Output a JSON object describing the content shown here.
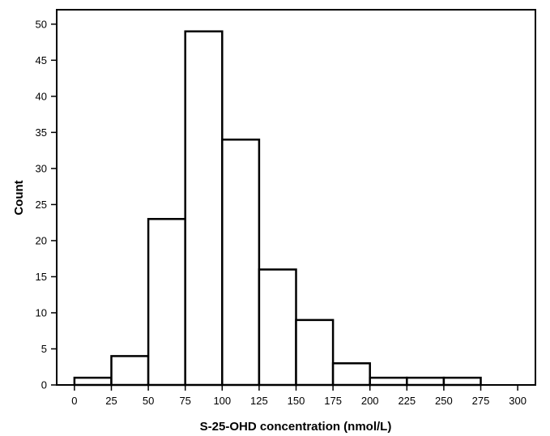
{
  "chart_data": {
    "type": "bar",
    "subtype": "histogram",
    "title": "",
    "xlabel": "S-25-OHD concentration (nmol/L)",
    "ylabel": "Count",
    "bin_width": 25,
    "bins": [
      {
        "start": 0,
        "end": 25,
        "count": 1
      },
      {
        "start": 25,
        "end": 50,
        "count": 4
      },
      {
        "start": 50,
        "end": 75,
        "count": 23
      },
      {
        "start": 75,
        "end": 100,
        "count": 49
      },
      {
        "start": 100,
        "end": 125,
        "count": 34
      },
      {
        "start": 125,
        "end": 150,
        "count": 16
      },
      {
        "start": 150,
        "end": 175,
        "count": 9
      },
      {
        "start": 175,
        "end": 200,
        "count": 3
      },
      {
        "start": 200,
        "end": 225,
        "count": 1
      },
      {
        "start": 225,
        "end": 250,
        "count": 1
      },
      {
        "start": 250,
        "end": 275,
        "count": 1
      }
    ],
    "xlim": [
      -12,
      312
    ],
    "ylim": [
      0,
      52
    ],
    "x_ticks": [
      0,
      25,
      50,
      75,
      100,
      125,
      150,
      175,
      200,
      225,
      250,
      275,
      300
    ],
    "y_ticks": [
      0,
      5,
      10,
      15,
      20,
      25,
      30,
      35,
      40,
      45,
      50
    ],
    "grid": false,
    "legend": "none",
    "colors": {
      "bar_fill": "#ffffff",
      "bar_stroke": "#000000",
      "axis": "#000000"
    }
  }
}
